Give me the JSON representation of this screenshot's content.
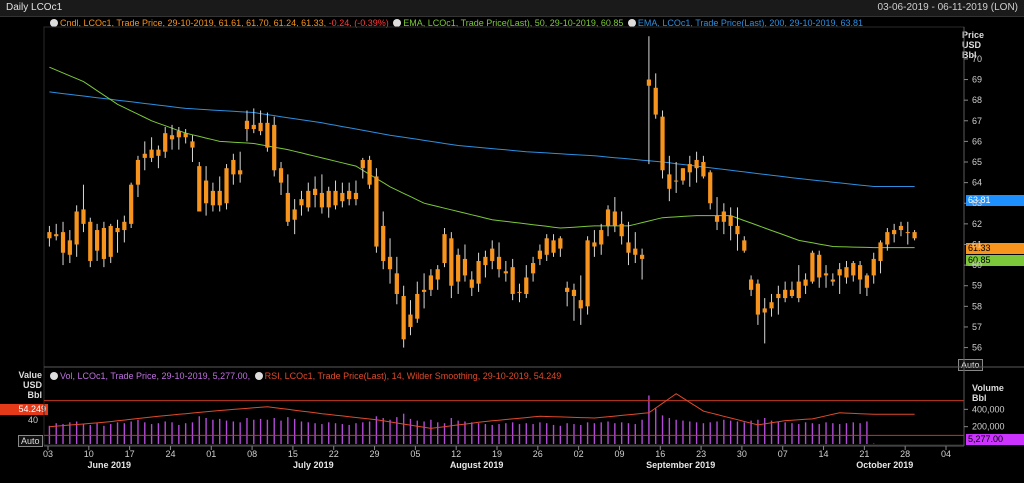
{
  "window": {
    "title": "Daily LCOc1",
    "date_range": "03-06-2019 - 06-11-2019 (LON)"
  },
  "price_panel": {
    "legend": {
      "candles": {
        "text": "Cndl, LCOc1, Trade Price, 29-10-2019, 61.61, 61.70, 61.24, 61.33,",
        "change": " -0.24, (-0.39%)"
      },
      "ema50": {
        "text": "EMA, LCOc1, Trade Price(Last), 50, 29-10-2019, 60.85"
      },
      "ema200": {
        "text": "EMA, LCOc1, Trade Price(Last), 200, 29-10-2019, 63.81"
      }
    },
    "axis_header": [
      "Price",
      "USD",
      "Bbl"
    ],
    "badges": {
      "ema200": "63.81",
      "last": "61.33",
      "ema50": "60.85"
    },
    "auto_button": "Auto"
  },
  "lower_panel": {
    "left_header": [
      "Value",
      "USD",
      "Bbl"
    ],
    "right_header": [
      "Volume",
      "Bbl"
    ],
    "legend": {
      "vol": "Vol, LCOc1, Trade Price, 29-10-2019, 5,277.00,",
      "rsi": "RSI, LCOc1, Trade Price(Last), 14, Wilder Smoothing, 29-10-2019, 54.249"
    },
    "badges": {
      "rsi": "54.249",
      "volume": "5,277.00"
    },
    "left_tick": "40",
    "auto_button": "Auto"
  },
  "colors": {
    "up_candle": "#f7941d",
    "down_candle": "#f7941d",
    "ema50": "#7cc83a",
    "ema200": "#2d8fe0",
    "volume": "#b24bd6",
    "rsi": "#e04a2a",
    "change_negative": "#ff3b3b"
  },
  "chart_data": [
    {
      "type": "candlestick",
      "title": "Daily LCOc1",
      "ylabel": "Price USD Bbl",
      "ylim": [
        55.3,
        71.5
      ],
      "y_ticks": [
        56,
        57,
        58,
        59,
        60,
        61,
        62,
        63,
        64,
        65,
        66,
        67,
        68,
        69,
        70
      ],
      "x_tick_labels": [
        "03",
        "10",
        "17",
        "24",
        "01",
        "08",
        "15",
        "22",
        "29",
        "05",
        "12",
        "19",
        "26",
        "02",
        "09",
        "16",
        "23",
        "30",
        "07",
        "14",
        "21",
        "28",
        "04"
      ],
      "x_month_labels": [
        "June 2019",
        "July 2019",
        "August 2019",
        "September 2019",
        "October 2019"
      ],
      "x_month_label_ticks": [
        1.5,
        6.5,
        10.5,
        15.5,
        20.5
      ],
      "candles_ohlc": [
        [
          61.3,
          61.9,
          60.9,
          61.6
        ],
        [
          61.5,
          62.0,
          61.2,
          61.4
        ],
        [
          61.6,
          62.1,
          60.0,
          60.6
        ],
        [
          61.2,
          61.7,
          60.1,
          60.5
        ],
        [
          61.0,
          62.9,
          60.4,
          62.6
        ],
        [
          62.7,
          63.9,
          61.6,
          62.0
        ],
        [
          62.1,
          62.3,
          59.9,
          60.2
        ],
        [
          60.7,
          62.0,
          60.2,
          61.7
        ],
        [
          61.8,
          62.1,
          59.9,
          60.3
        ],
        [
          60.4,
          62.0,
          60.1,
          61.9
        ],
        [
          61.8,
          62.2,
          60.6,
          61.6
        ],
        [
          61.7,
          62.4,
          61.1,
          62.1
        ],
        [
          62.0,
          64.0,
          61.8,
          63.9
        ],
        [
          63.9,
          65.3,
          63.3,
          65.1
        ],
        [
          65.2,
          66.0,
          64.6,
          65.4
        ],
        [
          65.6,
          66.2,
          65.0,
          65.2
        ],
        [
          65.3,
          65.8,
          64.7,
          65.6
        ],
        [
          65.5,
          66.7,
          65.2,
          66.4
        ],
        [
          66.3,
          66.8,
          65.6,
          66.1
        ],
        [
          66.2,
          66.7,
          65.6,
          66.5
        ],
        [
          66.4,
          66.6,
          65.9,
          66.2
        ],
        [
          66.0,
          66.3,
          65.0,
          65.7
        ],
        [
          64.8,
          65.0,
          62.8,
          62.6
        ],
        [
          64.1,
          64.8,
          62.4,
          63.0
        ],
        [
          62.9,
          64.0,
          62.6,
          63.6
        ],
        [
          63.6,
          64.3,
          62.6,
          62.9
        ],
        [
          63.0,
          64.9,
          62.7,
          64.7
        ],
        [
          64.4,
          65.4,
          63.9,
          65.1
        ],
        [
          64.6,
          65.5,
          64.0,
          64.4
        ],
        [
          66.6,
          67.5,
          66.0,
          67.0
        ],
        [
          66.8,
          67.6,
          66.4,
          66.6
        ],
        [
          66.9,
          67.5,
          66.3,
          66.5
        ],
        [
          66.9,
          67.4,
          65.5,
          65.7
        ],
        [
          66.8,
          67.2,
          64.3,
          64.6
        ],
        [
          64.0,
          65.0,
          63.4,
          64.7
        ],
        [
          63.5,
          64.4,
          61.9,
          62.1
        ],
        [
          62.7,
          63.2,
          61.5,
          62.2
        ],
        [
          62.9,
          63.6,
          62.4,
          63.2
        ],
        [
          63.6,
          64.0,
          62.6,
          62.8
        ],
        [
          63.7,
          64.3,
          62.8,
          63.4
        ],
        [
          63.5,
          64.4,
          62.5,
          62.8
        ],
        [
          62.8,
          63.8,
          62.3,
          63.6
        ],
        [
          63.6,
          64.1,
          62.7,
          62.9
        ],
        [
          63.1,
          64.0,
          62.8,
          63.5
        ],
        [
          63.2,
          64.0,
          62.9,
          63.6
        ],
        [
          63.5,
          64.1,
          62.9,
          63.2
        ],
        [
          64.7,
          65.2,
          64.2,
          65.1
        ],
        [
          65.1,
          65.3,
          63.7,
          63.9
        ],
        [
          64.3,
          64.7,
          60.6,
          60.9
        ],
        [
          61.9,
          62.6,
          59.8,
          60.2
        ],
        [
          60.4,
          61.3,
          59.1,
          59.8
        ],
        [
          59.6,
          60.4,
          58.1,
          58.6
        ],
        [
          58.5,
          59.0,
          56.0,
          56.4
        ],
        [
          57.0,
          58.3,
          56.6,
          57.6
        ],
        [
          57.4,
          59.2,
          57.2,
          58.6
        ],
        [
          58.8,
          59.6,
          57.9,
          58.7
        ],
        [
          58.8,
          59.8,
          58.5,
          59.5
        ],
        [
          59.3,
          60.0,
          58.8,
          59.8
        ],
        [
          60.1,
          61.8,
          59.9,
          61.5
        ],
        [
          61.3,
          61.6,
          58.4,
          59.0
        ],
        [
          59.2,
          60.8,
          58.6,
          60.5
        ],
        [
          60.3,
          61.0,
          59.2,
          59.5
        ],
        [
          59.3,
          59.7,
          58.5,
          58.9
        ],
        [
          59.1,
          60.6,
          58.7,
          60.2
        ],
        [
          60.0,
          60.7,
          59.4,
          60.4
        ],
        [
          60.2,
          61.2,
          59.8,
          60.8
        ],
        [
          60.4,
          61.1,
          59.4,
          59.8
        ],
        [
          59.6,
          60.2,
          59.2,
          59.7
        ],
        [
          59.9,
          60.3,
          58.3,
          58.6
        ],
        [
          58.7,
          59.1,
          58.2,
          58.7
        ],
        [
          58.6,
          60.0,
          58.4,
          59.4
        ],
        [
          59.6,
          60.4,
          59.2,
          60.1
        ],
        [
          60.3,
          61.0,
          60.0,
          60.7
        ],
        [
          60.5,
          61.5,
          60.2,
          61.3
        ],
        [
          61.2,
          61.5,
          60.4,
          60.6
        ],
        [
          60.8,
          61.4,
          60.4,
          61.3
        ],
        [
          58.9,
          59.2,
          58.0,
          58.7
        ],
        [
          58.8,
          59.1,
          57.3,
          58.5
        ],
        [
          58.3,
          59.5,
          57.1,
          57.9
        ],
        [
          58.0,
          61.4,
          57.6,
          61.2
        ],
        [
          61.1,
          61.7,
          60.4,
          60.9
        ],
        [
          61.0,
          62.0,
          60.5,
          61.7
        ],
        [
          61.9,
          62.9,
          61.4,
          62.7
        ],
        [
          62.6,
          63.3,
          61.6,
          61.9
        ],
        [
          62.0,
          62.6,
          61.0,
          61.4
        ],
        [
          61.1,
          62.1,
          60.0,
          60.6
        ],
        [
          60.5,
          61.6,
          60.1,
          60.8
        ],
        [
          60.5,
          60.8,
          59.3,
          60.3
        ],
        [
          69.0,
          71.1,
          64.9,
          68.7
        ],
        [
          68.6,
          69.3,
          67.1,
          67.3
        ],
        [
          67.2,
          67.5,
          64.2,
          64.6
        ],
        [
          64.4,
          65.3,
          63.1,
          63.7
        ],
        [
          64.1,
          65.0,
          63.5,
          64.1
        ],
        [
          64.1,
          64.7,
          63.9,
          64.7
        ],
        [
          64.9,
          65.3,
          63.8,
          64.5
        ],
        [
          64.7,
          65.5,
          64.0,
          65.1
        ],
        [
          65.0,
          65.3,
          64.2,
          64.3
        ],
        [
          64.5,
          64.6,
          62.7,
          63.0
        ],
        [
          62.4,
          63.3,
          61.7,
          62.1
        ],
        [
          62.1,
          63.0,
          61.5,
          62.6
        ],
        [
          62.4,
          62.8,
          61.2,
          61.9
        ],
        [
          61.9,
          62.8,
          60.7,
          61.5
        ],
        [
          61.2,
          61.4,
          60.6,
          60.7
        ],
        [
          59.3,
          59.5,
          58.5,
          58.8
        ],
        [
          59.1,
          59.3,
          57.1,
          57.6
        ],
        [
          57.7,
          58.4,
          56.2,
          57.9
        ],
        [
          57.9,
          58.6,
          57.5,
          58.2
        ],
        [
          58.4,
          59.0,
          57.6,
          58.6
        ],
        [
          58.4,
          59.2,
          58.2,
          58.8
        ],
        [
          58.8,
          59.2,
          58.4,
          58.5
        ],
        [
          58.4,
          60.0,
          58.2,
          59.2
        ],
        [
          59.3,
          59.6,
          58.6,
          59.0
        ],
        [
          59.2,
          60.7,
          59.1,
          60.6
        ],
        [
          60.5,
          60.7,
          58.9,
          59.4
        ],
        [
          59.5,
          60.0,
          58.9,
          59.6
        ],
        [
          59.3,
          59.6,
          59.0,
          59.2
        ],
        [
          59.5,
          60.1,
          58.6,
          59.8
        ],
        [
          59.9,
          60.2,
          59.1,
          59.4
        ],
        [
          59.5,
          60.2,
          59.2,
          60.1
        ],
        [
          60.0,
          60.2,
          58.6,
          59.3
        ],
        [
          58.9,
          59.6,
          58.5,
          59.5
        ],
        [
          59.5,
          60.6,
          59.1,
          60.3
        ],
        [
          60.2,
          61.2,
          59.6,
          61.1
        ],
        [
          61.0,
          61.8,
          60.7,
          61.6
        ],
        [
          61.5,
          62.0,
          61.1,
          61.7
        ],
        [
          61.7,
          62.1,
          61.4,
          61.9
        ],
        [
          61.6,
          62.1,
          61.0,
          61.6
        ],
        [
          61.6,
          61.7,
          61.2,
          61.3
        ]
      ],
      "ema50": {
        "anchor_index": [
          0,
          5,
          10,
          15,
          20,
          25,
          30,
          35,
          40,
          45,
          50,
          55,
          60,
          65,
          70,
          75,
          80,
          85,
          90,
          95,
          100,
          105,
          110,
          115,
          121
        ],
        "values": [
          69.6,
          68.9,
          67.8,
          67.0,
          66.4,
          66.0,
          65.9,
          65.6,
          65.2,
          64.8,
          63.8,
          63.0,
          62.6,
          62.2,
          62.0,
          61.8,
          61.9,
          61.9,
          62.3,
          62.4,
          62.4,
          61.8,
          61.2,
          60.9,
          60.85
        ]
      },
      "ema200": {
        "anchor_index": [
          0,
          10,
          20,
          30,
          40,
          50,
          60,
          70,
          80,
          90,
          100,
          110,
          121
        ],
        "values": [
          68.4,
          68.0,
          67.6,
          67.4,
          66.9,
          66.3,
          65.8,
          65.5,
          65.3,
          65.0,
          64.6,
          64.2,
          63.81
        ]
      }
    },
    {
      "type": "bar",
      "title": "Volume / RSI",
      "ylabel": "Volume Bbl",
      "y_ticks": [
        200000,
        400000
      ],
      "y_tick_labels": [
        "200,000",
        "400,000"
      ],
      "ylim": [
        0,
        600000
      ],
      "volume": [
        210000,
        240000,
        230000,
        250000,
        260000,
        230000,
        220000,
        240000,
        210000,
        230000,
        250000,
        240000,
        260000,
        280000,
        250000,
        230000,
        240000,
        260000,
        250000,
        220000,
        240000,
        250000,
        320000,
        300000,
        280000,
        290000,
        270000,
        260000,
        250000,
        300000,
        280000,
        290000,
        280000,
        300000,
        270000,
        310000,
        290000,
        260000,
        250000,
        240000,
        230000,
        250000,
        240000,
        230000,
        220000,
        240000,
        250000,
        260000,
        320000,
        300000,
        280000,
        310000,
        350000,
        290000,
        270000,
        260000,
        280000,
        250000,
        240000,
        300000,
        270000,
        260000,
        250000,
        240000,
        230000,
        220000,
        230000,
        240000,
        250000,
        230000,
        240000,
        230000,
        250000,
        240000,
        220000,
        210000,
        240000,
        230000,
        220000,
        250000,
        240000,
        250000,
        260000,
        240000,
        250000,
        240000,
        230000,
        280000,
        560000,
        410000,
        330000,
        300000,
        280000,
        270000,
        260000,
        250000,
        240000,
        250000,
        260000,
        280000,
        270000,
        260000,
        250000,
        270000,
        280000,
        300000,
        270000,
        260000,
        250000,
        240000,
        230000,
        250000,
        240000,
        230000,
        250000,
        240000,
        230000,
        240000,
        250000,
        240000,
        260000,
        5277
      ],
      "rsi_ylim": [
        20,
        80
      ],
      "rsi_levels": [
        70,
        30
      ],
      "rsi": {
        "anchor_index": [
          0,
          8,
          16,
          24,
          32,
          40,
          48,
          56,
          64,
          72,
          80,
          88,
          92,
          96,
          100,
          104,
          108,
          112,
          116,
          121
        ],
        "values": [
          40,
          45,
          52,
          58,
          63,
          55,
          48,
          38,
          46,
          52,
          50,
          56,
          78,
          58,
          50,
          42,
          47,
          49,
          56,
          54.249
        ]
      }
    }
  ]
}
